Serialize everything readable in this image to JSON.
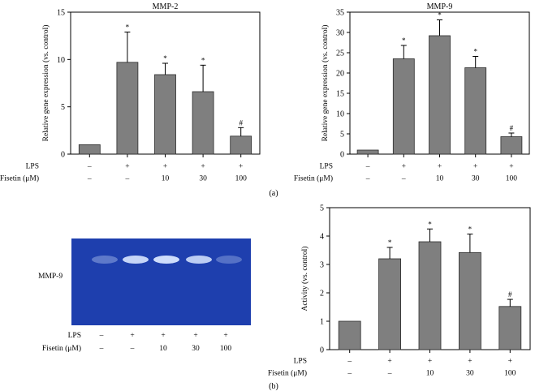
{
  "panel_labels": {
    "a": "(a)",
    "b": "(b)"
  },
  "row_labels": {
    "lps": "LPS",
    "fisetin": "Fisetin (μM)"
  },
  "conditions": {
    "lps": [
      "–",
      "+",
      "+",
      "+",
      "+"
    ],
    "fisetin": [
      "–",
      "–",
      "10",
      "30",
      "100"
    ]
  },
  "gel": {
    "label": "MMP-9",
    "background_color": "#1e3fae",
    "band_color": "#d8e6ff"
  },
  "colors": {
    "bar": "#7f7f7f",
    "bar_edge": "#2b2b2b"
  },
  "chart_data": [
    {
      "type": "bar",
      "title": "MMP-2",
      "ylabel": "Relative gene expression (vs. control)",
      "ylim": [
        0,
        15
      ],
      "yticks": [
        0,
        5,
        10,
        15
      ],
      "categories": [
        "Control",
        "LPS",
        "LPS + Fisetin 10",
        "LPS + Fisetin 30",
        "LPS + Fisetin 100"
      ],
      "values": [
        1.0,
        9.7,
        8.4,
        6.6,
        1.9
      ],
      "errors": [
        0,
        3.2,
        1.2,
        2.8,
        0.9
      ],
      "annotations": [
        "",
        "*",
        "*",
        "*",
        "#"
      ]
    },
    {
      "type": "bar",
      "title": "MMP-9",
      "ylabel": "Relative gene expression (vs. control)",
      "ylim": [
        0,
        35
      ],
      "yticks": [
        0,
        5,
        10,
        15,
        20,
        25,
        30,
        35
      ],
      "categories": [
        "Control",
        "LPS",
        "LPS + Fisetin 10",
        "LPS + Fisetin 30",
        "LPS + Fisetin 100"
      ],
      "values": [
        1.0,
        23.5,
        29.2,
        21.3,
        4.3
      ],
      "errors": [
        0,
        3.3,
        3.9,
        2.8,
        0.9
      ],
      "annotations": [
        "",
        "*",
        "*",
        "*",
        "#"
      ]
    },
    {
      "type": "bar",
      "title": "",
      "ylabel": "Activity (vs. control)",
      "ylim": [
        0,
        5
      ],
      "yticks": [
        0,
        1,
        2,
        3,
        4,
        5
      ],
      "categories": [
        "Control",
        "LPS",
        "LPS + Fisetin 10",
        "LPS + Fisetin 30",
        "LPS + Fisetin 100"
      ],
      "values": [
        1.0,
        3.2,
        3.8,
        3.42,
        1.52
      ],
      "errors": [
        0,
        0.4,
        0.45,
        0.65,
        0.25
      ],
      "annotations": [
        "",
        "*",
        "*",
        "*",
        "#"
      ]
    }
  ]
}
